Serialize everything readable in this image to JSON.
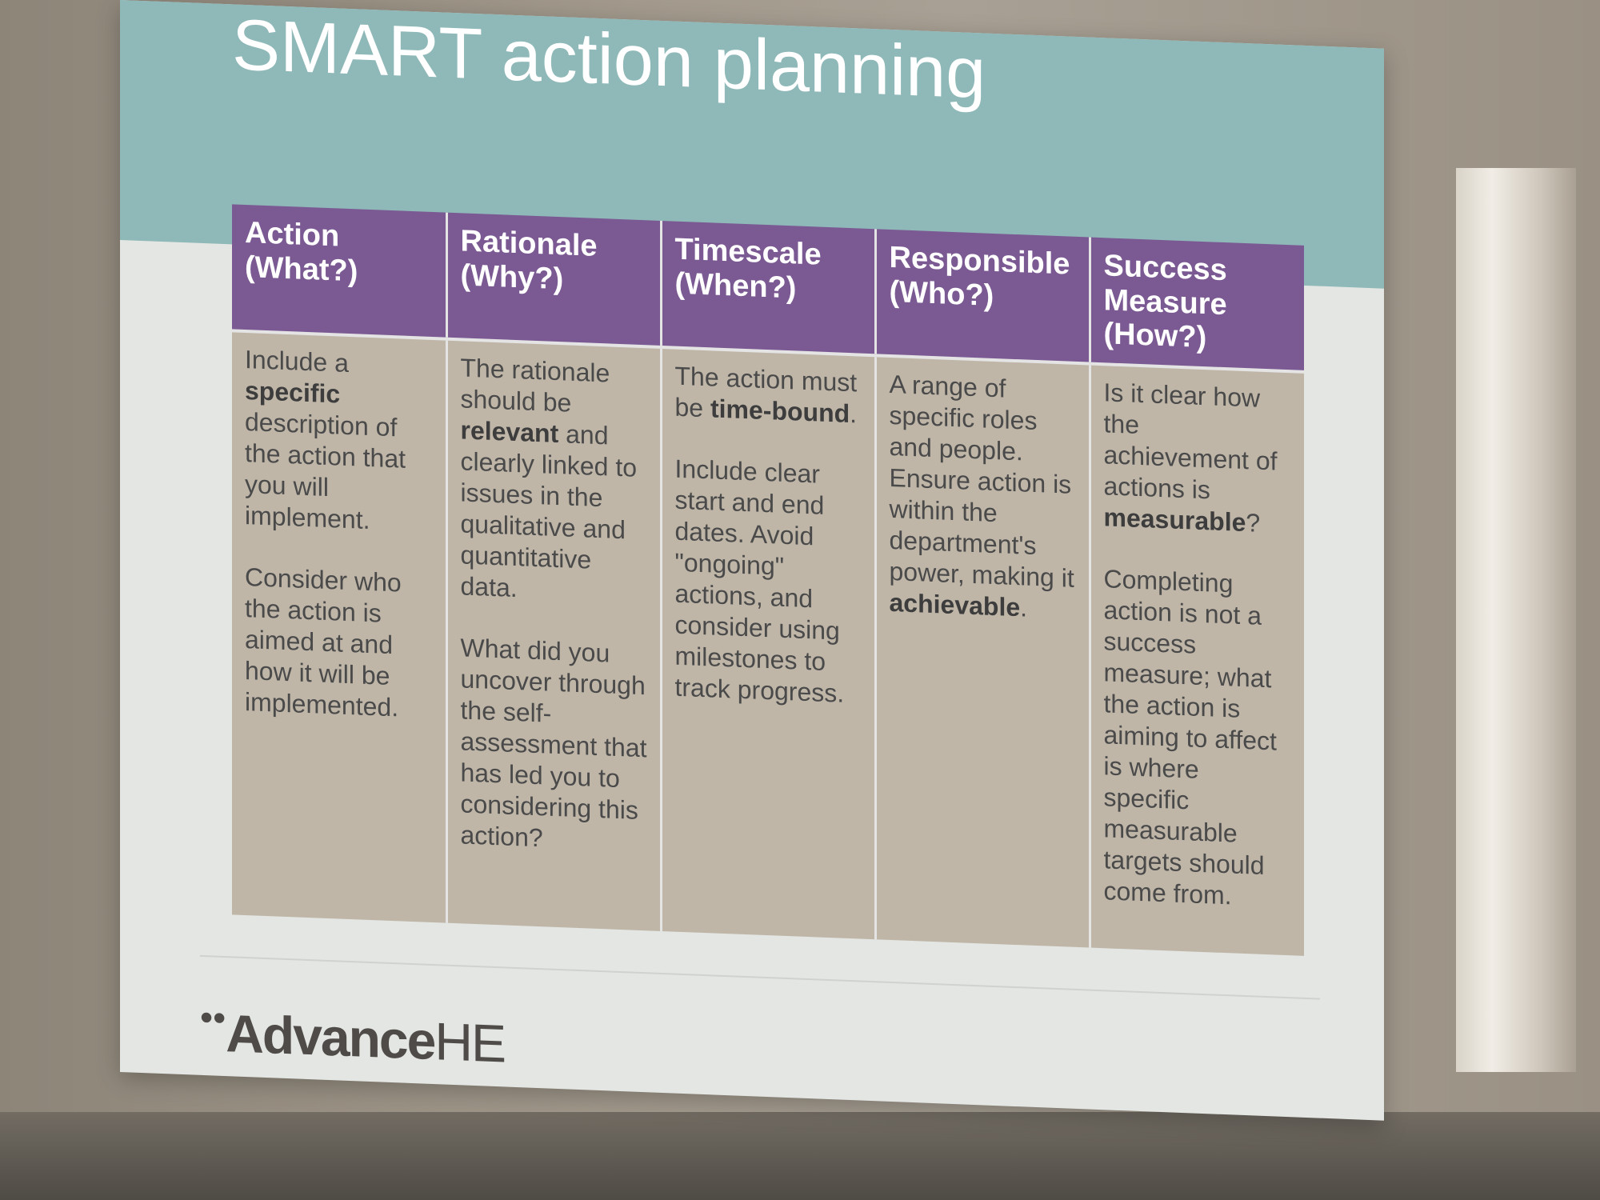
{
  "slide": {
    "title": "SMART action planning",
    "columns": [
      {
        "header": [
          "Action",
          "(What?)"
        ],
        "paragraphs": [
          [
            {
              "t": "Include a "
            },
            {
              "t": "specific",
              "b": true
            },
            {
              "t": " description of the action that you will implement."
            }
          ],
          [
            {
              "t": "Consider who the action is aimed at and how it will be implemented."
            }
          ]
        ]
      },
      {
        "header": [
          "Rationale",
          "(Why?)"
        ],
        "paragraphs": [
          [
            {
              "t": "The rationale should be "
            },
            {
              "t": "relevant",
              "b": true
            },
            {
              "t": " and clearly linked to issues in the qualitative and quantitative data."
            }
          ],
          [
            {
              "t": "What did you uncover through the self-assessment that has led you to considering this action?"
            }
          ]
        ]
      },
      {
        "header": [
          "Timescale",
          "(When?)"
        ],
        "paragraphs": [
          [
            {
              "t": "The action must be "
            },
            {
              "t": "time-bound",
              "b": true
            },
            {
              "t": "."
            }
          ],
          [
            {
              "t": "Include clear start and end dates. Avoid \"ongoing\" actions, and consider using milestones to track progress."
            }
          ]
        ]
      },
      {
        "header": [
          "Responsible",
          "(Who?)"
        ],
        "paragraphs": [
          [
            {
              "t": "A range of specific roles and people. Ensure action is within the department's power, making it "
            },
            {
              "t": "achievable",
              "b": true
            },
            {
              "t": "."
            }
          ]
        ]
      },
      {
        "header": [
          "Success",
          "Measure (How?)"
        ],
        "paragraphs": [
          [
            {
              "t": "Is it clear how the achievement of actions is "
            },
            {
              "t": "measurable",
              "b": true
            },
            {
              "t": "?"
            }
          ],
          [
            {
              "t": "Completing action is not a success measure; what the action is aiming to affect is where specific measurable targets should come from."
            }
          ]
        ]
      }
    ],
    "logo": {
      "dots": "••",
      "word": "Advance",
      "suffix": "HE"
    }
  },
  "colors": {
    "title_band": "#8fb8b8",
    "header_fill": "#7b5a93",
    "cell_fill": "#bfb6a8",
    "slide_bg": "#e3e6e2"
  }
}
